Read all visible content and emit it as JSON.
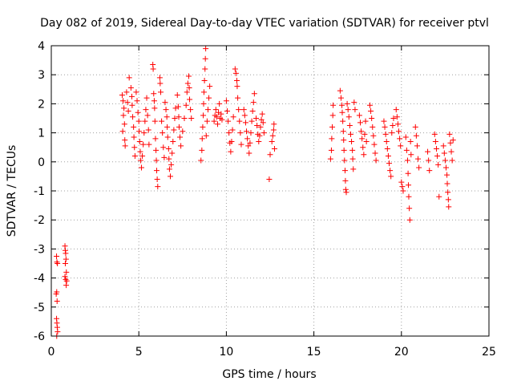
{
  "chart_data": {
    "type": "scatter",
    "title": "Day 082 of 2019, Sidereal Day-to-day VTEC variation (SDTVAR) for receiver ptvl",
    "xlabel": "GPS time / hours",
    "ylabel": "SDTVAR / TECUs",
    "xlim": [
      0,
      25
    ],
    "ylim": [
      -6,
      4
    ],
    "xticks": [
      "0",
      "5",
      "10",
      "15",
      "20",
      "25"
    ],
    "yticks": [
      "-6",
      "-5",
      "-4",
      "-3",
      "-2",
      "-1",
      "0",
      "1",
      "2",
      "3",
      "4"
    ],
    "grid": true,
    "marker": "plus",
    "color": "#ff0000",
    "series": [
      {
        "name": "SDTVAR",
        "points": [
          [
            0.3,
            -3.25
          ],
          [
            0.32,
            -3.45
          ],
          [
            0.35,
            -3.5
          ],
          [
            0.28,
            -4.55
          ],
          [
            0.31,
            -4.48
          ],
          [
            0.33,
            -4.8
          ],
          [
            0.3,
            -5.4
          ],
          [
            0.32,
            -5.55
          ],
          [
            0.34,
            -5.7
          ],
          [
            0.36,
            -5.85
          ],
          [
            0.31,
            -6.0
          ],
          [
            0.78,
            -2.9
          ],
          [
            0.8,
            -3.05
          ],
          [
            0.82,
            -3.15
          ],
          [
            0.84,
            -3.35
          ],
          [
            0.8,
            -3.5
          ],
          [
            0.86,
            -3.8
          ],
          [
            0.78,
            -3.95
          ],
          [
            0.82,
            -4.05
          ],
          [
            0.88,
            -4.1
          ],
          [
            0.85,
            -4.25
          ],
          [
            4.05,
            2.3
          ],
          [
            4.1,
            2.1
          ],
          [
            4.15,
            1.85
          ],
          [
            4.12,
            1.6
          ],
          [
            4.18,
            1.3
          ],
          [
            4.08,
            1.05
          ],
          [
            4.2,
            0.75
          ],
          [
            4.22,
            0.55
          ],
          [
            4.3,
            2.4
          ],
          [
            4.35,
            2.05
          ],
          [
            4.4,
            1.75
          ],
          [
            4.45,
            2.9
          ],
          [
            4.55,
            2.55
          ],
          [
            4.6,
            2.25
          ],
          [
            4.62,
            1.95
          ],
          [
            4.65,
            1.55
          ],
          [
            4.7,
            1.2
          ],
          [
            4.72,
            0.85
          ],
          [
            4.75,
            0.5
          ],
          [
            4.78,
            0.2
          ],
          [
            4.85,
            2.4
          ],
          [
            4.9,
            2.1
          ],
          [
            4.95,
            1.7
          ],
          [
            5.0,
            1.4
          ],
          [
            5.02,
            1.05
          ],
          [
            5.05,
            0.7
          ],
          [
            5.08,
            0.35
          ],
          [
            5.1,
            0.05
          ],
          [
            5.15,
            -0.2
          ],
          [
            5.2,
            0.2
          ],
          [
            5.25,
            0.6
          ],
          [
            5.3,
            1.0
          ],
          [
            5.35,
            1.4
          ],
          [
            5.4,
            1.8
          ],
          [
            5.45,
            2.2
          ],
          [
            5.5,
            1.6
          ],
          [
            5.55,
            1.1
          ],
          [
            5.58,
            0.6
          ],
          [
            5.8,
            3.35
          ],
          [
            5.82,
            3.2
          ],
          [
            5.85,
            2.35
          ],
          [
            5.88,
            2.1
          ],
          [
            5.9,
            1.85
          ],
          [
            5.92,
            1.4
          ],
          [
            5.95,
            0.8
          ],
          [
            5.98,
            0.4
          ],
          [
            6.0,
            0.05
          ],
          [
            6.02,
            -0.3
          ],
          [
            6.05,
            -0.6
          ],
          [
            6.08,
            -0.85
          ],
          [
            6.2,
            2.9
          ],
          [
            6.22,
            2.7
          ],
          [
            6.25,
            2.4
          ],
          [
            6.3,
            1.4
          ],
          [
            6.35,
            1.0
          ],
          [
            6.4,
            0.5
          ],
          [
            6.45,
            0.15
          ],
          [
            6.5,
            2.05
          ],
          [
            6.55,
            1.8
          ],
          [
            6.6,
            1.55
          ],
          [
            6.62,
            1.2
          ],
          [
            6.65,
            0.85
          ],
          [
            6.7,
            0.45
          ],
          [
            6.72,
            0.1
          ],
          [
            6.75,
            -0.25
          ],
          [
            6.8,
            -0.5
          ],
          [
            6.85,
            -0.1
          ],
          [
            6.9,
            0.3
          ],
          [
            6.95,
            0.7
          ],
          [
            7.0,
            1.1
          ],
          [
            7.05,
            1.5
          ],
          [
            7.1,
            1.85
          ],
          [
            7.2,
            2.3
          ],
          [
            7.25,
            1.9
          ],
          [
            7.28,
            1.55
          ],
          [
            7.3,
            1.2
          ],
          [
            7.35,
            0.85
          ],
          [
            7.4,
            0.55
          ],
          [
            7.5,
            1.05
          ],
          [
            7.6,
            1.5
          ],
          [
            7.7,
            1.95
          ],
          [
            7.75,
            2.4
          ],
          [
            7.8,
            2.7
          ],
          [
            7.85,
            2.95
          ],
          [
            7.88,
            2.55
          ],
          [
            7.9,
            2.15
          ],
          [
            7.95,
            1.8
          ],
          [
            8.0,
            1.5
          ],
          [
            8.55,
            0.05
          ],
          [
            8.6,
            0.4
          ],
          [
            8.62,
            0.8
          ],
          [
            8.65,
            1.2
          ],
          [
            8.68,
            1.6
          ],
          [
            8.7,
            2.0
          ],
          [
            8.72,
            2.4
          ],
          [
            8.75,
            2.8
          ],
          [
            8.78,
            3.2
          ],
          [
            8.8,
            3.55
          ],
          [
            8.82,
            3.9
          ],
          [
            8.85,
            0.9
          ],
          [
            8.9,
            1.4
          ],
          [
            8.95,
            1.8
          ],
          [
            9.0,
            2.2
          ],
          [
            9.05,
            2.6
          ],
          [
            9.3,
            1.4
          ],
          [
            9.35,
            1.6
          ],
          [
            9.4,
            1.8
          ],
          [
            9.45,
            1.55
          ],
          [
            9.5,
            1.3
          ],
          [
            9.55,
            1.7
          ],
          [
            9.6,
            2.0
          ],
          [
            9.65,
            1.5
          ],
          [
            9.7,
            1.65
          ],
          [
            9.75,
            1.45
          ],
          [
            10.0,
            2.1
          ],
          [
            10.05,
            1.75
          ],
          [
            10.1,
            1.4
          ],
          [
            10.15,
            1.0
          ],
          [
            10.2,
            0.65
          ],
          [
            10.25,
            0.35
          ],
          [
            10.3,
            0.7
          ],
          [
            10.35,
            1.1
          ],
          [
            10.4,
            1.55
          ],
          [
            10.5,
            3.2
          ],
          [
            10.55,
            3.05
          ],
          [
            10.6,
            2.8
          ],
          [
            10.62,
            2.6
          ],
          [
            10.65,
            2.2
          ],
          [
            10.7,
            1.8
          ],
          [
            10.75,
            1.4
          ],
          [
            10.8,
            1.0
          ],
          [
            10.85,
            0.6
          ],
          [
            11.0,
            1.8
          ],
          [
            11.05,
            1.6
          ],
          [
            11.1,
            1.35
          ],
          [
            11.15,
            1.05
          ],
          [
            11.2,
            0.8
          ],
          [
            11.25,
            0.55
          ],
          [
            11.3,
            0.3
          ],
          [
            11.35,
            0.65
          ],
          [
            11.4,
            1.0
          ],
          [
            11.45,
            1.4
          ],
          [
            11.5,
            1.75
          ],
          [
            11.55,
            2.05
          ],
          [
            11.6,
            2.35
          ],
          [
            11.7,
            1.5
          ],
          [
            11.75,
            1.25
          ],
          [
            11.8,
            0.95
          ],
          [
            11.85,
            0.7
          ],
          [
            11.9,
            0.9
          ],
          [
            11.95,
            1.2
          ],
          [
            12.0,
            1.45
          ],
          [
            12.05,
            1.65
          ],
          [
            12.1,
            1.35
          ],
          [
            12.15,
            1.0
          ],
          [
            12.45,
            -0.6
          ],
          [
            12.5,
            0.25
          ],
          [
            12.6,
            0.7
          ],
          [
            12.65,
            0.9
          ],
          [
            12.7,
            1.1
          ],
          [
            12.72,
            1.3
          ],
          [
            12.75,
            0.45
          ],
          [
            15.95,
            0.1
          ],
          [
            16.0,
            0.4
          ],
          [
            16.02,
            0.8
          ],
          [
            16.05,
            1.2
          ],
          [
            16.08,
            1.6
          ],
          [
            16.1,
            1.95
          ],
          [
            16.5,
            2.45
          ],
          [
            16.55,
            2.2
          ],
          [
            16.6,
            1.95
          ],
          [
            16.62,
            1.7
          ],
          [
            16.65,
            1.4
          ],
          [
            16.68,
            1.05
          ],
          [
            16.7,
            0.75
          ],
          [
            16.72,
            0.4
          ],
          [
            16.75,
            0.05
          ],
          [
            16.78,
            -0.3
          ],
          [
            16.8,
            -0.65
          ],
          [
            16.82,
            -0.95
          ],
          [
            16.85,
            -1.05
          ],
          [
            16.9,
            2.0
          ],
          [
            16.95,
            1.8
          ],
          [
            17.0,
            1.55
          ],
          [
            17.05,
            1.25
          ],
          [
            17.1,
            0.95
          ],
          [
            17.15,
            0.7
          ],
          [
            17.2,
            0.4
          ],
          [
            17.22,
            0.1
          ],
          [
            17.25,
            -0.25
          ],
          [
            17.3,
            2.05
          ],
          [
            17.35,
            1.8
          ],
          [
            17.6,
            1.6
          ],
          [
            17.65,
            1.35
          ],
          [
            17.7,
            1.05
          ],
          [
            17.75,
            0.8
          ],
          [
            17.8,
            0.5
          ],
          [
            17.85,
            0.25
          ],
          [
            17.9,
            0.95
          ],
          [
            17.95,
            1.4
          ],
          [
            18.0,
            0.7
          ],
          [
            18.2,
            1.95
          ],
          [
            18.25,
            1.75
          ],
          [
            18.3,
            1.5
          ],
          [
            18.35,
            1.2
          ],
          [
            18.4,
            0.9
          ],
          [
            18.45,
            0.6
          ],
          [
            18.5,
            0.3
          ],
          [
            18.55,
            0.05
          ],
          [
            19.0,
            1.4
          ],
          [
            19.05,
            1.2
          ],
          [
            19.1,
            0.95
          ],
          [
            19.15,
            0.7
          ],
          [
            19.2,
            0.45
          ],
          [
            19.25,
            0.2
          ],
          [
            19.3,
            -0.05
          ],
          [
            19.35,
            -0.3
          ],
          [
            19.4,
            -0.5
          ],
          [
            19.45,
            1.0
          ],
          [
            19.5,
            1.25
          ],
          [
            19.55,
            1.5
          ],
          [
            19.7,
            1.8
          ],
          [
            19.75,
            1.55
          ],
          [
            19.8,
            1.3
          ],
          [
            19.85,
            1.05
          ],
          [
            19.9,
            0.8
          ],
          [
            19.95,
            0.55
          ],
          [
            20.0,
            -0.7
          ],
          [
            20.05,
            -0.85
          ],
          [
            20.1,
            -1.0
          ],
          [
            20.25,
            0.85
          ],
          [
            20.3,
            0.4
          ],
          [
            20.35,
            0.05
          ],
          [
            20.38,
            -0.4
          ],
          [
            20.4,
            -0.8
          ],
          [
            20.42,
            -1.2
          ],
          [
            20.45,
            -1.6
          ],
          [
            20.48,
            -2.0
          ],
          [
            20.52,
            0.7
          ],
          [
            20.55,
            0.25
          ],
          [
            20.8,
            1.2
          ],
          [
            20.85,
            0.9
          ],
          [
            20.9,
            0.55
          ],
          [
            20.95,
            0.1
          ],
          [
            21.0,
            -0.2
          ],
          [
            21.5,
            0.35
          ],
          [
            21.55,
            0.05
          ],
          [
            21.6,
            -0.3
          ],
          [
            21.9,
            0.95
          ],
          [
            21.95,
            0.7
          ],
          [
            22.0,
            0.45
          ],
          [
            22.05,
            0.2
          ],
          [
            22.1,
            -0.1
          ],
          [
            22.15,
            -1.2
          ],
          [
            22.4,
            0.55
          ],
          [
            22.45,
            0.3
          ],
          [
            22.5,
            0.05
          ],
          [
            22.55,
            -0.2
          ],
          [
            22.6,
            -0.45
          ],
          [
            22.62,
            -0.75
          ],
          [
            22.65,
            -1.05
          ],
          [
            22.68,
            -1.3
          ],
          [
            22.7,
            -1.55
          ],
          [
            22.75,
            0.95
          ],
          [
            22.8,
            0.65
          ],
          [
            22.85,
            0.35
          ],
          [
            22.9,
            0.05
          ],
          [
            22.95,
            0.75
          ]
        ]
      }
    ]
  }
}
